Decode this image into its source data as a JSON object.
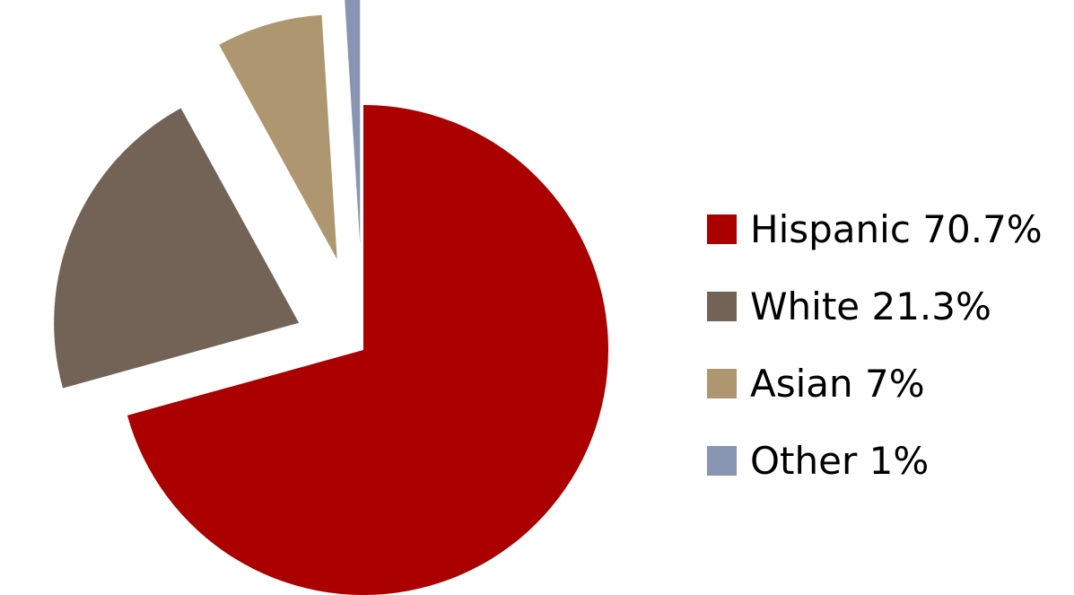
{
  "chart_data": {
    "type": "pie",
    "title": "",
    "exploded": true,
    "legend_position": "right",
    "slices": [
      {
        "label": "Hispanic",
        "value": 70.7,
        "display": "70.7%",
        "color": "#aa0000"
      },
      {
        "label": "White",
        "value": 21.3,
        "display": "21.3%",
        "color": "#736357"
      },
      {
        "label": "Asian",
        "value": 7,
        "display": "7%",
        "color": "#ae9670"
      },
      {
        "label": "Other",
        "value": 1,
        "display": "1%",
        "color": "#8795b2"
      }
    ]
  }
}
